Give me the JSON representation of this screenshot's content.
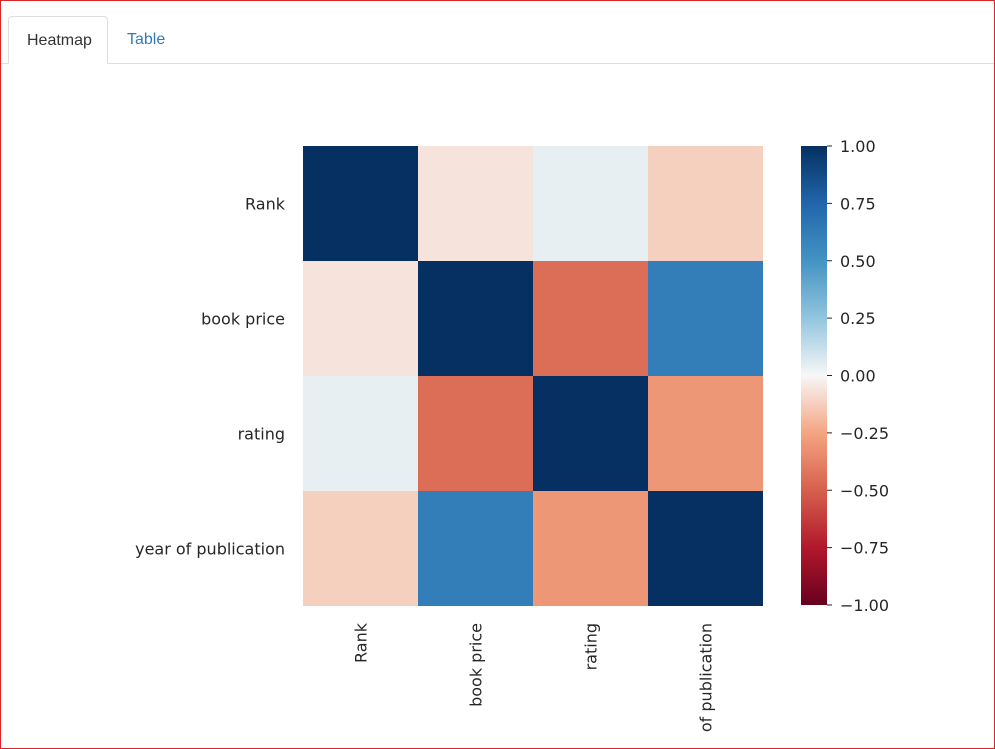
{
  "tabs": [
    {
      "label": "Heatmap",
      "active": true
    },
    {
      "label": "Table",
      "active": false
    }
  ],
  "chart_data": {
    "type": "heatmap",
    "title": "",
    "row_labels": [
      "Rank",
      "book price",
      "rating",
      "year of publication"
    ],
    "column_labels": [
      "Rank",
      "book price",
      "rating",
      "of publication"
    ],
    "values": [
      [
        1.0,
        -0.06,
        0.04,
        -0.12
      ],
      [
        -0.06,
        1.0,
        -0.45,
        0.62
      ],
      [
        0.04,
        -0.45,
        1.0,
        -0.3
      ],
      [
        -0.12,
        0.62,
        -0.3,
        1.0
      ]
    ],
    "colormap": "RdBu",
    "vmin": -1.0,
    "vmax": 1.0,
    "colorbar_ticks": [
      1.0,
      0.75,
      0.5,
      0.25,
      0.0,
      -0.25,
      -0.5,
      -0.75,
      -1.0
    ],
    "colorbar_tick_labels": [
      "1.00",
      "0.75",
      "0.50",
      "0.25",
      "0.00",
      "−0.25",
      "−0.50",
      "−0.75",
      "−1.00"
    ],
    "colors": {
      "low": "#67001f",
      "mid": "#f7f7f7",
      "high": "#053061"
    }
  }
}
